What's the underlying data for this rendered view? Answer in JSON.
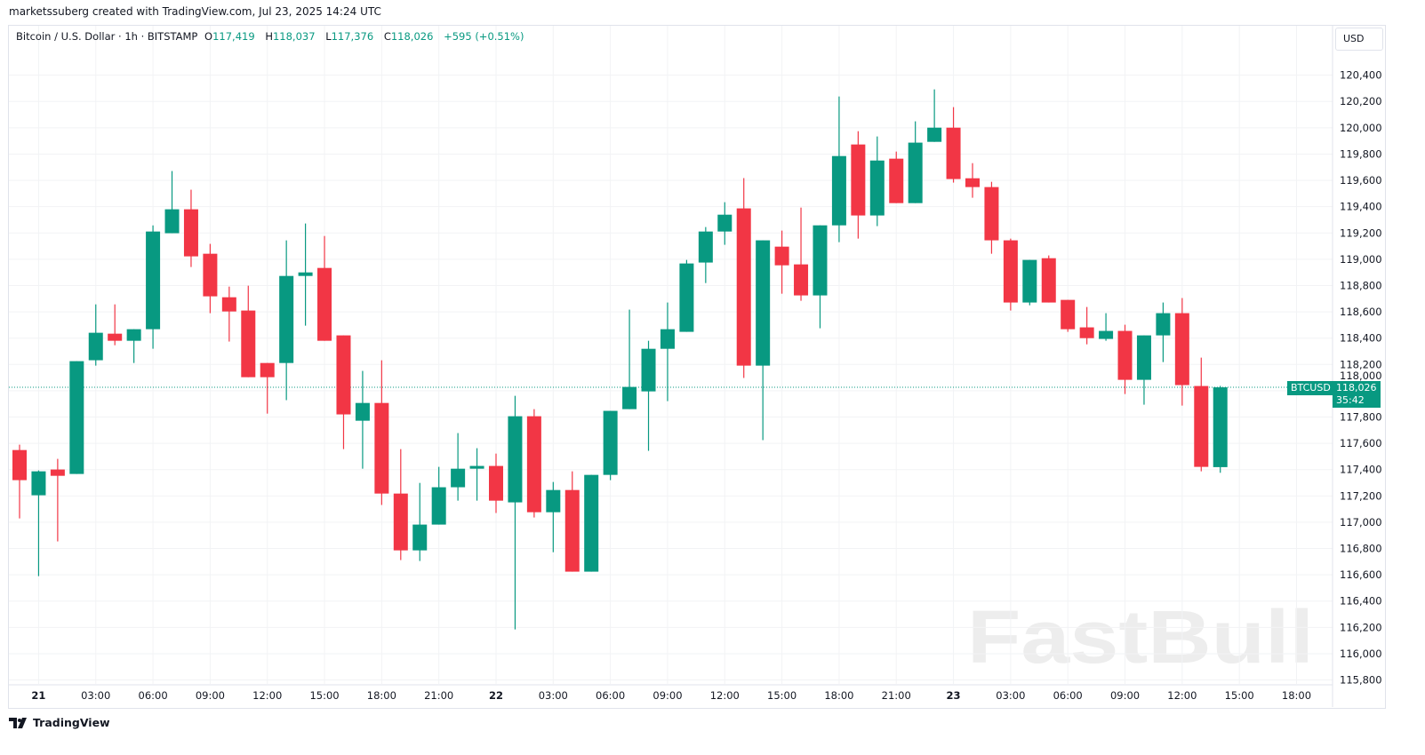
{
  "credit": "marketssuberg created with TradingView.com, Jul 23, 2025 14:24 UTC",
  "legend": {
    "symbol": "Bitcoin / U.S. Dollar · 1h · BITSTAMP",
    "o_label": "O",
    "o": "117,419",
    "h_label": "H",
    "h": "118,037",
    "l_label": "L",
    "l": "117,376",
    "c_label": "C",
    "c": "118,026",
    "change": "+595 (+0.51%)"
  },
  "currency_button": "USD",
  "price_tag": {
    "symbol": "BTCUSD",
    "price": "118,026",
    "countdown": "35:42"
  },
  "footer_logo": "TradingView",
  "watermark": "FastBull",
  "colors": {
    "up": "#089981",
    "down": "#f23645",
    "grid": "#f2f3f5"
  },
  "chart_data": {
    "type": "candlestick",
    "interval": "1h",
    "ylim": [
      115770,
      120580
    ],
    "last_price": 118026,
    "y_ticks": [
      "115,800",
      "116,000",
      "116,200",
      "116,400",
      "116,600",
      "116,800",
      "117,000",
      "117,200",
      "117,400",
      "117,600",
      "117,800",
      "118,000",
      "118,200",
      "118,400",
      "118,600",
      "118,800",
      "119,000",
      "119,200",
      "119,400",
      "119,600",
      "119,800",
      "120,000",
      "120,200",
      "120,400"
    ],
    "x_ticks": [
      {
        "t": "2025-07-21T00:00",
        "label": "21"
      },
      {
        "t": "2025-07-21T03:00",
        "label": "03:00"
      },
      {
        "t": "2025-07-21T06:00",
        "label": "06:00"
      },
      {
        "t": "2025-07-21T09:00",
        "label": "09:00"
      },
      {
        "t": "2025-07-21T12:00",
        "label": "12:00"
      },
      {
        "t": "2025-07-21T15:00",
        "label": "15:00"
      },
      {
        "t": "2025-07-21T18:00",
        "label": "18:00"
      },
      {
        "t": "2025-07-21T21:00",
        "label": "21:00"
      },
      {
        "t": "2025-07-22T00:00",
        "label": "22"
      },
      {
        "t": "2025-07-22T03:00",
        "label": "03:00"
      },
      {
        "t": "2025-07-22T06:00",
        "label": "06:00"
      },
      {
        "t": "2025-07-22T09:00",
        "label": "09:00"
      },
      {
        "t": "2025-07-22T12:00",
        "label": "12:00"
      },
      {
        "t": "2025-07-22T15:00",
        "label": "15:00"
      },
      {
        "t": "2025-07-22T18:00",
        "label": "18:00"
      },
      {
        "t": "2025-07-22T21:00",
        "label": "21:00"
      },
      {
        "t": "2025-07-23T00:00",
        "label": "23"
      },
      {
        "t": "2025-07-23T03:00",
        "label": "03:00"
      },
      {
        "t": "2025-07-23T06:00",
        "label": "06:00"
      },
      {
        "t": "2025-07-23T09:00",
        "label": "09:00"
      },
      {
        "t": "2025-07-23T12:00",
        "label": "12:00"
      },
      {
        "t": "2025-07-23T15:00",
        "label": "15:00"
      },
      {
        "t": "2025-07-23T18:00",
        "label": "18:00"
      }
    ],
    "candles": [
      {
        "t": "2025-07-20T23:00",
        "o": 117549,
        "h": 117590,
        "l": 117029,
        "c": 117320
      },
      {
        "t": "2025-07-21T00:00",
        "o": 117205,
        "h": 117394,
        "l": 116590,
        "c": 117387
      },
      {
        "t": "2025-07-21T01:00",
        "o": 117401,
        "h": 117482,
        "l": 116854,
        "c": 117353
      },
      {
        "t": "2025-07-21T02:00",
        "o": 117367,
        "h": 118225,
        "l": 117367,
        "c": 118225
      },
      {
        "t": "2025-07-21T03:00",
        "o": 118232,
        "h": 118657,
        "l": 118191,
        "c": 118441
      },
      {
        "t": "2025-07-21T04:00",
        "o": 118434,
        "h": 118657,
        "l": 118346,
        "c": 118380
      },
      {
        "t": "2025-07-21T05:00",
        "o": 118380,
        "h": 118468,
        "l": 118211,
        "c": 118468
      },
      {
        "t": "2025-07-21T06:00",
        "o": 118468,
        "h": 119258,
        "l": 118319,
        "c": 119211
      },
      {
        "t": "2025-07-21T07:00",
        "o": 119198,
        "h": 119671,
        "l": 119198,
        "c": 119380
      },
      {
        "t": "2025-07-21T08:00",
        "o": 119380,
        "h": 119529,
        "l": 118941,
        "c": 119022
      },
      {
        "t": "2025-07-21T09:00",
        "o": 119042,
        "h": 119117,
        "l": 118590,
        "c": 118718
      },
      {
        "t": "2025-07-21T10:00",
        "o": 118711,
        "h": 118792,
        "l": 118374,
        "c": 118603
      },
      {
        "t": "2025-07-21T11:00",
        "o": 118610,
        "h": 118799,
        "l": 118103,
        "c": 118103
      },
      {
        "t": "2025-07-21T12:00",
        "o": 118211,
        "h": 118211,
        "l": 117826,
        "c": 118103
      },
      {
        "t": "2025-07-21T13:00",
        "o": 118211,
        "h": 119144,
        "l": 117928,
        "c": 118873
      },
      {
        "t": "2025-07-21T14:00",
        "o": 118873,
        "h": 119272,
        "l": 118495,
        "c": 118900
      },
      {
        "t": "2025-07-21T15:00",
        "o": 118934,
        "h": 119177,
        "l": 118380,
        "c": 118380
      },
      {
        "t": "2025-07-21T16:00",
        "o": 118421,
        "h": 118421,
        "l": 117556,
        "c": 117820
      },
      {
        "t": "2025-07-21T17:00",
        "o": 117772,
        "h": 118151,
        "l": 117407,
        "c": 117907
      },
      {
        "t": "2025-07-21T18:00",
        "o": 117907,
        "h": 118232,
        "l": 117131,
        "c": 117218
      },
      {
        "t": "2025-07-21T19:00",
        "o": 117218,
        "h": 117556,
        "l": 116712,
        "c": 116786
      },
      {
        "t": "2025-07-21T20:00",
        "o": 116786,
        "h": 117299,
        "l": 116705,
        "c": 116982
      },
      {
        "t": "2025-07-21T21:00",
        "o": 116982,
        "h": 117421,
        "l": 116982,
        "c": 117266
      },
      {
        "t": "2025-07-21T22:00",
        "o": 117266,
        "h": 117678,
        "l": 117164,
        "c": 117407
      },
      {
        "t": "2025-07-21T23:00",
        "o": 117407,
        "h": 117563,
        "l": 117164,
        "c": 117428
      },
      {
        "t": "2025-07-22T00:00",
        "o": 117428,
        "h": 117522,
        "l": 117070,
        "c": 117164
      },
      {
        "t": "2025-07-22T01:00",
        "o": 117151,
        "h": 117961,
        "l": 116185,
        "c": 117806
      },
      {
        "t": "2025-07-22T02:00",
        "o": 117806,
        "h": 117860,
        "l": 117036,
        "c": 117076
      },
      {
        "t": "2025-07-22T03:00",
        "o": 117076,
        "h": 117306,
        "l": 116772,
        "c": 117245
      },
      {
        "t": "2025-07-22T04:00",
        "o": 117245,
        "h": 117387,
        "l": 116624,
        "c": 116624
      },
      {
        "t": "2025-07-22T05:00",
        "o": 116624,
        "h": 117360,
        "l": 116624,
        "c": 117360
      },
      {
        "t": "2025-07-22T06:00",
        "o": 117360,
        "h": 117847,
        "l": 117320,
        "c": 117847
      },
      {
        "t": "2025-07-22T07:00",
        "o": 117860,
        "h": 118617,
        "l": 117860,
        "c": 118029
      },
      {
        "t": "2025-07-22T08:00",
        "o": 117995,
        "h": 118380,
        "l": 117543,
        "c": 118319
      },
      {
        "t": "2025-07-22T09:00",
        "o": 118319,
        "h": 118671,
        "l": 117921,
        "c": 118468
      },
      {
        "t": "2025-07-22T10:00",
        "o": 118448,
        "h": 118995,
        "l": 118448,
        "c": 118968
      },
      {
        "t": "2025-07-22T11:00",
        "o": 118975,
        "h": 119245,
        "l": 118819,
        "c": 119211
      },
      {
        "t": "2025-07-22T12:00",
        "o": 119211,
        "h": 119434,
        "l": 119110,
        "c": 119339
      },
      {
        "t": "2025-07-22T13:00",
        "o": 119387,
        "h": 119617,
        "l": 118097,
        "c": 118191
      },
      {
        "t": "2025-07-22T14:00",
        "o": 118191,
        "h": 119144,
        "l": 117624,
        "c": 119144
      },
      {
        "t": "2025-07-22T15:00",
        "o": 119096,
        "h": 119218,
        "l": 118738,
        "c": 118954
      },
      {
        "t": "2025-07-22T16:00",
        "o": 118961,
        "h": 119393,
        "l": 118684,
        "c": 118725
      },
      {
        "t": "2025-07-22T17:00",
        "o": 118725,
        "h": 119258,
        "l": 118475,
        "c": 119258
      },
      {
        "t": "2025-07-22T18:00",
        "o": 119258,
        "h": 120238,
        "l": 119130,
        "c": 119785
      },
      {
        "t": "2025-07-22T19:00",
        "o": 119873,
        "h": 119974,
        "l": 119157,
        "c": 119333
      },
      {
        "t": "2025-07-22T20:00",
        "o": 119333,
        "h": 119934,
        "l": 119252,
        "c": 119751
      },
      {
        "t": "2025-07-22T21:00",
        "o": 119765,
        "h": 119819,
        "l": 119427,
        "c": 119427
      },
      {
        "t": "2025-07-22T22:00",
        "o": 119427,
        "h": 120049,
        "l": 119427,
        "c": 119887
      },
      {
        "t": "2025-07-22T23:00",
        "o": 119893,
        "h": 120292,
        "l": 119893,
        "c": 120001
      },
      {
        "t": "2025-07-23T00:00",
        "o": 120001,
        "h": 120157,
        "l": 119583,
        "c": 119610
      },
      {
        "t": "2025-07-23T01:00",
        "o": 119616,
        "h": 119731,
        "l": 119468,
        "c": 119549
      },
      {
        "t": "2025-07-23T02:00",
        "o": 119549,
        "h": 119589,
        "l": 119042,
        "c": 119144
      },
      {
        "t": "2025-07-23T03:00",
        "o": 119144,
        "h": 119157,
        "l": 118610,
        "c": 118671
      },
      {
        "t": "2025-07-23T04:00",
        "o": 118671,
        "h": 118995,
        "l": 118650,
        "c": 118995
      },
      {
        "t": "2025-07-23T05:00",
        "o": 119008,
        "h": 119029,
        "l": 118671,
        "c": 118671
      },
      {
        "t": "2025-07-23T06:00",
        "o": 118691,
        "h": 118691,
        "l": 118448,
        "c": 118468
      },
      {
        "t": "2025-07-23T07:00",
        "o": 118482,
        "h": 118637,
        "l": 118353,
        "c": 118400
      },
      {
        "t": "2025-07-23T08:00",
        "o": 118394,
        "h": 118590,
        "l": 118380,
        "c": 118455
      },
      {
        "t": "2025-07-23T09:00",
        "o": 118455,
        "h": 118502,
        "l": 117975,
        "c": 118083
      },
      {
        "t": "2025-07-23T10:00",
        "o": 118083,
        "h": 118421,
        "l": 117894,
        "c": 118421
      },
      {
        "t": "2025-07-23T11:00",
        "o": 118421,
        "h": 118671,
        "l": 118218,
        "c": 118590
      },
      {
        "t": "2025-07-23T12:00",
        "o": 118590,
        "h": 118705,
        "l": 117887,
        "c": 118043
      },
      {
        "t": "2025-07-23T13:00",
        "o": 118036,
        "h": 118252,
        "l": 117387,
        "c": 117421
      },
      {
        "t": "2025-07-23T14:00",
        "o": 117419,
        "h": 118037,
        "l": 117376,
        "c": 118026
      }
    ]
  }
}
